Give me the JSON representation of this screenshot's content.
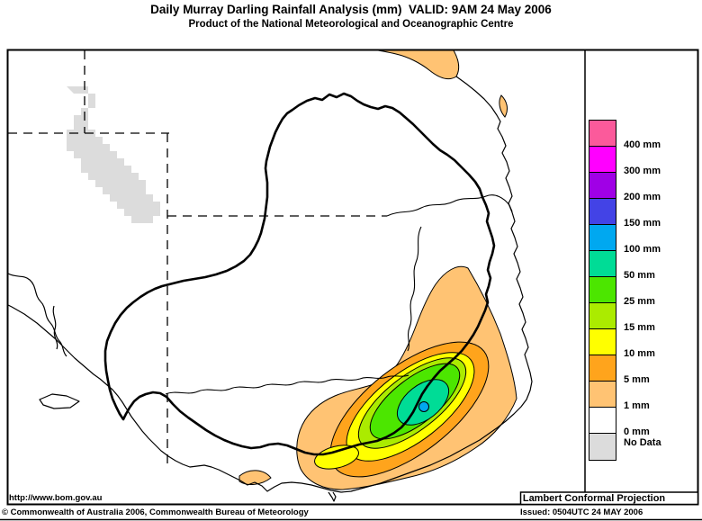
{
  "header": {
    "title": "Daily Murray Darling Rainfall Analysis (mm)  VALID: 9AM 24 May 2006",
    "subtitle": "Product of the National Meteorological and Oceanographic Centre"
  },
  "map": {
    "projection_label": "Lambert Conformal Projection"
  },
  "legend": {
    "entries": [
      {
        "label": "400 mm",
        "color": "#FB5A9B"
      },
      {
        "label": "300 mm",
        "color": "#FF00FF"
      },
      {
        "label": "200 mm",
        "color": "#A000E6"
      },
      {
        "label": "150 mm",
        "color": "#4343E6"
      },
      {
        "label": "100 mm",
        "color": "#00A8F0"
      },
      {
        "label": "50 mm",
        "color": "#00DC96"
      },
      {
        "label": "25 mm",
        "color": "#4CE600"
      },
      {
        "label": "15 mm",
        "color": "#ABEB00"
      },
      {
        "label": "10 mm",
        "color": "#FFFF00"
      },
      {
        "label": "5 mm",
        "color": "#FFA41C"
      },
      {
        "label": "1 mm",
        "color": "#FFC373"
      },
      {
        "label": "0 mm",
        "color": "#FFFFFF"
      },
      {
        "label": "No Data",
        "color": "#DCDCDC"
      }
    ]
  },
  "colors": {
    "no_data": "#DCDCDC",
    "tan": "#FFC373",
    "orange": "#FFA41C",
    "yellow": "#FFFF00",
    "yellow_green": "#ABEB00",
    "green": "#4CE600",
    "teal": "#00DC96",
    "sky": "#00A8F0"
  },
  "footer": {
    "url": "http://www.bom.gov.au",
    "copyright": "© Commonwealth of Australia 2006, Commonwealth Bureau of Meteorology",
    "issued": "Issued: 0504UTC 24 MAY 2006"
  }
}
